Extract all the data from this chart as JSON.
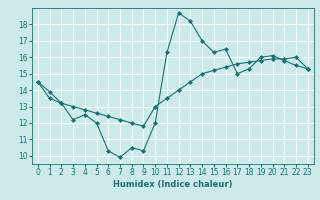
{
  "background_color": "#cceaea",
  "grid_color": "#ffffff",
  "line_color": "#1a7070",
  "line1_x": [
    0,
    1,
    2,
    3,
    4,
    5,
    6,
    7,
    8,
    9,
    10,
    11,
    12,
    13,
    14,
    15,
    16,
    17,
    18,
    19,
    20,
    21,
    22,
    23
  ],
  "line1_y": [
    14.5,
    13.9,
    13.2,
    12.2,
    12.5,
    12.0,
    10.3,
    9.9,
    10.5,
    10.3,
    12.0,
    16.3,
    18.7,
    18.2,
    17.0,
    16.3,
    16.5,
    15.0,
    15.3,
    16.0,
    16.1,
    15.8,
    15.5,
    15.3
  ],
  "line2_x": [
    0,
    1,
    2,
    3,
    4,
    5,
    6,
    7,
    8,
    9,
    10,
    11,
    12,
    13,
    14,
    15,
    16,
    17,
    18,
    19,
    20,
    21,
    22,
    23
  ],
  "line2_y": [
    14.5,
    13.5,
    13.2,
    13.0,
    12.8,
    12.6,
    12.4,
    12.2,
    12.0,
    11.8,
    13.0,
    13.5,
    14.0,
    14.5,
    15.0,
    15.2,
    15.4,
    15.6,
    15.7,
    15.8,
    15.9,
    15.9,
    16.0,
    15.3
  ],
  "xlabel": "Humidex (Indice chaleur)",
  "xlim": [
    -0.5,
    23.5
  ],
  "ylim": [
    9.5,
    19.0
  ],
  "yticks": [
    10,
    11,
    12,
    13,
    14,
    15,
    16,
    17,
    18
  ],
  "xticks": [
    0,
    1,
    2,
    3,
    4,
    5,
    6,
    7,
    8,
    9,
    10,
    11,
    12,
    13,
    14,
    15,
    16,
    17,
    18,
    19,
    20,
    21,
    22,
    23
  ],
  "marker": "D",
  "markersize": 2.0,
  "linewidth": 0.8,
  "tick_fontsize": 5.5,
  "xlabel_fontsize": 6.0
}
